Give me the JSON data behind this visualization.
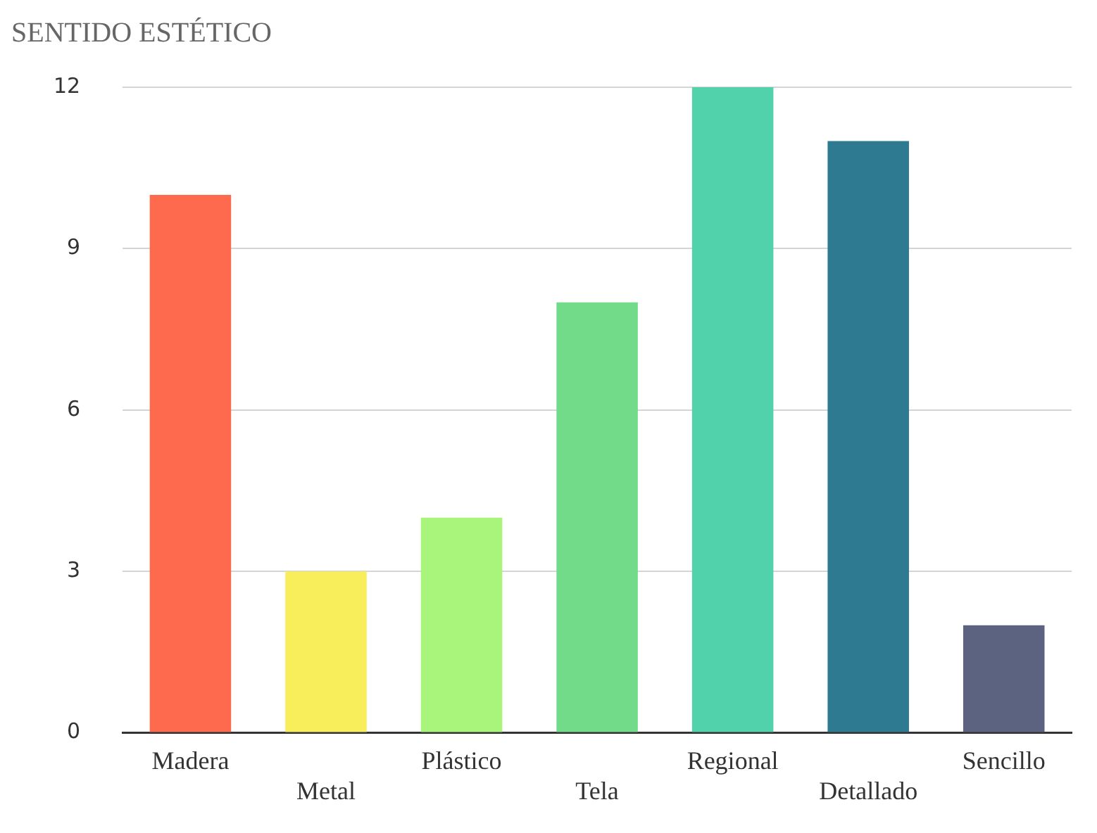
{
  "chart_data": {
    "type": "bar",
    "title": "SENTIDO ESTÉTICO",
    "categories": [
      "Madera",
      "Metal",
      "Plástico",
      "Tela",
      "Regional",
      "Detallado",
      "Sencillo"
    ],
    "values": [
      10,
      3,
      4,
      8,
      12,
      11,
      2
    ],
    "colors": [
      "#fe6a4d",
      "#f8ee5c",
      "#a9f57c",
      "#72db8a",
      "#52d2aa",
      "#2e7a90",
      "#5b6380"
    ],
    "ylim": [
      0,
      12
    ],
    "yticks": [
      0,
      3,
      6,
      9,
      12
    ],
    "grid": "y",
    "legend": false
  }
}
